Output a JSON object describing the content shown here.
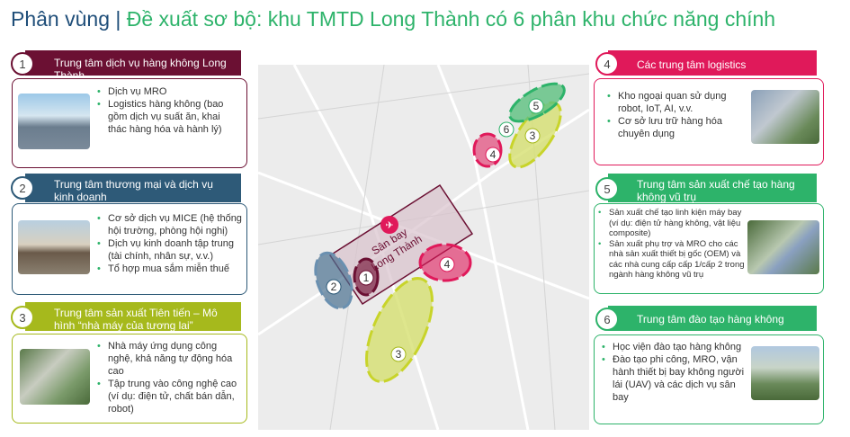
{
  "title": {
    "prefix": "Phân vùng |",
    "main": "Đề xuất sơ bộ: khu TMTD Long Thành có 6 phân khu chức năng chính"
  },
  "colors": {
    "c1": "#6b1033",
    "c2": "#2e5a78",
    "c3": "#a6b91c",
    "c4": "#e0195a",
    "c5": "#2db36a",
    "c6": "#2db36a"
  },
  "zones": [
    {
      "num": "1",
      "title": "Trung tâm dịch vụ hàng không Long Thành",
      "items": [
        "Dịch vụ MRO",
        "Logistics hàng không (bao gồm dịch vụ suất ăn, khai thác hàng hóa và hành lý)"
      ]
    },
    {
      "num": "2",
      "title": "Trung tâm thương mại và dịch vụ kinh doanh",
      "items": [
        "Cơ sở dịch vụ MICE (hệ thống hội trường, phòng hội nghị)",
        "Dịch vụ kinh doanh tập trung (tài chính, nhân sự, v.v.)",
        "Tổ hợp mua sắm miễn thuế"
      ]
    },
    {
      "num": "3",
      "title": "Trung tâm sản xuất Tiên tiến – Mô hình “nhà máy của tương lai”",
      "items": [
        "Nhà máy ứng dụng công nghệ, khả năng tự động hóa cao",
        "Tập trung vào công nghệ cao (ví dụ: điện tử, chất bán dẫn, robot)"
      ]
    },
    {
      "num": "4",
      "title": "Các trung tâm logistics",
      "items": [
        "Kho ngoại quan sử dụng robot, IoT, AI, v.v.",
        "Cơ sở lưu trữ hàng hóa chuyên dụng"
      ]
    },
    {
      "num": "5",
      "title": "Trung tâm sản xuất chế tạo hàng không vũ trụ",
      "items": [
        "Sản xuất chế tạo linh kiện máy bay (ví dụ: điện tử hàng không, vật liệu composite)",
        "Sản xuất phụ trợ và MRO cho các nhà sản xuất thiết bị gốc (OEM) và các nhà cung cấp cấp 1/cấp 2 trong ngành hàng không vũ trụ"
      ]
    },
    {
      "num": "6",
      "title": "Trung tâm đào tạo hàng không",
      "items": [
        "Học viện đào tạo hàng không",
        "Đào tạo phi công, MRO, vận hành thiết bị bay không người lái (UAV) và các dịch vụ sân bay"
      ]
    }
  ],
  "map": {
    "airport_label_1": "Sân bay",
    "airport_label_2": "Long Thành",
    "airport_icon": "airplane-icon"
  }
}
